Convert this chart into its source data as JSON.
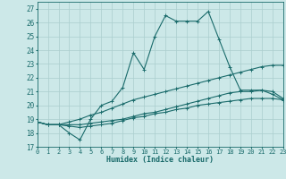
{
  "title": "",
  "xlabel": "Humidex (Indice chaleur)",
  "xlim": [
    0,
    23
  ],
  "ylim": [
    17,
    27.5
  ],
  "yticks": [
    17,
    18,
    19,
    20,
    21,
    22,
    23,
    24,
    25,
    26,
    27
  ],
  "xticks": [
    0,
    1,
    2,
    3,
    4,
    5,
    6,
    7,
    8,
    9,
    10,
    11,
    12,
    13,
    14,
    15,
    16,
    17,
    18,
    19,
    20,
    21,
    22,
    23
  ],
  "background_color": "#cce8e8",
  "grid_color": "#aacece",
  "line_color": "#1a6b6b",
  "lines": [
    {
      "x": [
        0,
        1,
        2,
        3,
        4,
        5,
        6,
        7,
        8,
        9,
        10,
        11,
        12,
        13,
        14,
        15,
        16,
        17,
        18,
        19,
        20,
        21,
        22,
        23
      ],
      "y": [
        18.8,
        18.6,
        18.6,
        18.0,
        17.5,
        19.0,
        20.0,
        20.3,
        21.3,
        23.8,
        22.6,
        25.0,
        26.5,
        26.1,
        26.1,
        26.1,
        26.8,
        24.8,
        22.8,
        21.1,
        21.1,
        21.1,
        20.8,
        20.4
      ]
    },
    {
      "x": [
        0,
        1,
        2,
        3,
        4,
        5,
        6,
        7,
        8,
        9,
        10,
        11,
        12,
        13,
        14,
        15,
        16,
        17,
        18,
        19,
        20,
        21,
        22,
        23
      ],
      "y": [
        18.8,
        18.6,
        18.6,
        18.8,
        19.0,
        19.3,
        19.5,
        19.8,
        20.1,
        20.4,
        20.6,
        20.8,
        21.0,
        21.2,
        21.4,
        21.6,
        21.8,
        22.0,
        22.2,
        22.4,
        22.6,
        22.8,
        22.9,
        22.9
      ]
    },
    {
      "x": [
        0,
        1,
        2,
        3,
        4,
        5,
        6,
        7,
        8,
        9,
        10,
        11,
        12,
        13,
        14,
        15,
        16,
        17,
        18,
        19,
        20,
        21,
        22,
        23
      ],
      "y": [
        18.8,
        18.6,
        18.6,
        18.6,
        18.6,
        18.7,
        18.8,
        18.9,
        19.0,
        19.2,
        19.4,
        19.5,
        19.7,
        19.9,
        20.1,
        20.3,
        20.5,
        20.7,
        20.9,
        21.0,
        21.0,
        21.1,
        21.0,
        20.5
      ]
    },
    {
      "x": [
        0,
        1,
        2,
        3,
        4,
        5,
        6,
        7,
        8,
        9,
        10,
        11,
        12,
        13,
        14,
        15,
        16,
        17,
        18,
        19,
        20,
        21,
        22,
        23
      ],
      "y": [
        18.8,
        18.6,
        18.6,
        18.5,
        18.4,
        18.5,
        18.6,
        18.7,
        18.9,
        19.1,
        19.2,
        19.4,
        19.5,
        19.7,
        19.8,
        20.0,
        20.1,
        20.2,
        20.3,
        20.4,
        20.5,
        20.5,
        20.5,
        20.4
      ]
    }
  ]
}
